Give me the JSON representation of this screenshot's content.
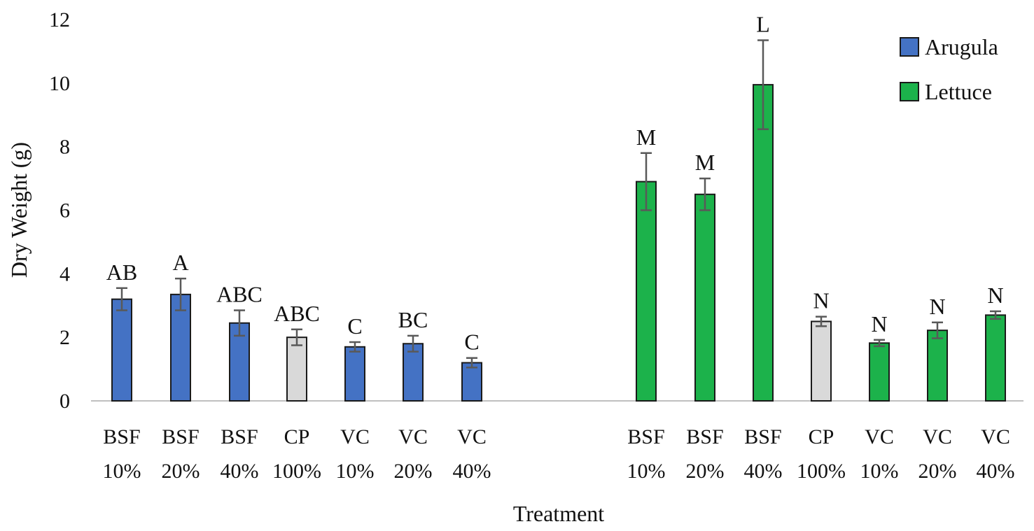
{
  "chart_data": {
    "type": "bar",
    "title": "",
    "xlabel": "Treatment",
    "ylabel": "Dry Weight (g)",
    "ylim": [
      0,
      12
    ],
    "yticks": [
      0,
      2,
      4,
      6,
      8,
      10,
      12
    ],
    "grid": false,
    "legend_position": "top-right",
    "colors": {
      "arugula": "#4472c4",
      "lettuce": "#1cb24b",
      "control": "#d9d9d9",
      "bar_outline": "#1a1a1a",
      "error_bar": "#595959",
      "axis": "#bfbfbf"
    },
    "legend": [
      {
        "label": "Arugula",
        "color": "#4472c4"
      },
      {
        "label": "Lettuce",
        "color": "#1cb24b"
      }
    ],
    "groups": [
      {
        "name": "Arugula",
        "bars": [
          {
            "line1": "BSF",
            "line2": "10%",
            "value": 3.2,
            "error": 0.35,
            "letter": "AB",
            "fill": "arugula"
          },
          {
            "line1": "BSF",
            "line2": "20%",
            "value": 3.35,
            "error": 0.5,
            "letter": "A",
            "fill": "arugula"
          },
          {
            "line1": "BSF",
            "line2": "40%",
            "value": 2.45,
            "error": 0.4,
            "letter": "ABC",
            "fill": "arugula"
          },
          {
            "line1": "CP",
            "line2": "100%",
            "value": 2.0,
            "error": 0.25,
            "letter": "ABC",
            "fill": "control"
          },
          {
            "line1": "VC",
            "line2": "10%",
            "value": 1.7,
            "error": 0.15,
            "letter": "C",
            "fill": "arugula"
          },
          {
            "line1": "VC",
            "line2": "20%",
            "value": 1.8,
            "error": 0.25,
            "letter": "BC",
            "fill": "arugula"
          },
          {
            "line1": "VC",
            "line2": "40%",
            "value": 1.2,
            "error": 0.15,
            "letter": "C",
            "fill": "arugula"
          }
        ]
      },
      {
        "name": "Lettuce",
        "bars": [
          {
            "line1": "BSF",
            "line2": "10%",
            "value": 6.9,
            "error": 0.9,
            "letter": "M",
            "fill": "lettuce"
          },
          {
            "line1": "BSF",
            "line2": "20%",
            "value": 6.5,
            "error": 0.5,
            "letter": "M",
            "fill": "lettuce"
          },
          {
            "line1": "BSF",
            "line2": "40%",
            "value": 9.95,
            "error": 1.4,
            "letter": "L",
            "fill": "lettuce"
          },
          {
            "line1": "CP",
            "line2": "100%",
            "value": 2.5,
            "error": 0.15,
            "letter": "N",
            "fill": "control"
          },
          {
            "line1": "VC",
            "line2": "10%",
            "value": 1.82,
            "error": 0.1,
            "letter": "N",
            "fill": "lettuce"
          },
          {
            "line1": "VC",
            "line2": "20%",
            "value": 2.22,
            "error": 0.25,
            "letter": "N",
            "fill": "lettuce"
          },
          {
            "line1": "VC",
            "line2": "40%",
            "value": 2.7,
            "error": 0.12,
            "letter": "N",
            "fill": "lettuce"
          }
        ]
      }
    ]
  }
}
